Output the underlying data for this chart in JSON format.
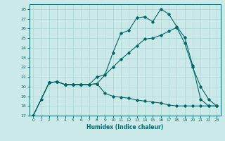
{
  "xlabel": "Humidex (Indice chaleur)",
  "bg_color": "#cce9e9",
  "grid_color": "#aad4d4",
  "line_color": "#006666",
  "xlim": [
    -0.5,
    23.5
  ],
  "ylim": [
    17,
    28.5
  ],
  "yticks": [
    17,
    18,
    19,
    20,
    21,
    22,
    23,
    24,
    25,
    26,
    27,
    28
  ],
  "xticks": [
    0,
    1,
    2,
    3,
    4,
    5,
    6,
    7,
    8,
    9,
    10,
    11,
    12,
    13,
    14,
    15,
    16,
    17,
    18,
    19,
    20,
    21,
    22,
    23
  ],
  "line1_x": [
    0,
    1,
    2,
    3,
    4,
    5,
    6,
    7,
    8,
    9,
    10,
    11,
    12,
    13,
    14,
    15,
    16,
    17,
    18,
    19,
    20,
    21,
    22,
    23
  ],
  "line1_y": [
    17.0,
    18.7,
    20.4,
    20.5,
    20.2,
    20.2,
    20.2,
    20.2,
    21.0,
    21.2,
    23.5,
    25.5,
    25.8,
    27.1,
    27.2,
    26.7,
    28.0,
    27.5,
    26.2,
    25.1,
    22.2,
    18.7,
    18.0,
    18.0
  ],
  "line2_x": [
    0,
    2,
    3,
    4,
    5,
    6,
    7,
    8,
    9,
    10,
    11,
    12,
    13,
    14,
    15,
    16,
    17,
    18,
    19,
    20,
    21,
    22,
    23
  ],
  "line2_y": [
    17.0,
    20.4,
    20.5,
    20.2,
    20.2,
    20.2,
    20.2,
    20.3,
    19.3,
    19.0,
    18.9,
    18.8,
    18.6,
    18.5,
    18.4,
    18.3,
    18.1,
    18.0,
    18.0,
    18.0,
    18.0,
    18.0,
    18.0
  ],
  "line3_x": [
    0,
    2,
    3,
    4,
    5,
    6,
    7,
    8,
    9,
    10,
    11,
    12,
    13,
    14,
    15,
    16,
    17,
    18,
    19,
    20,
    21,
    22,
    23
  ],
  "line3_y": [
    17.0,
    20.4,
    20.5,
    20.2,
    20.2,
    20.2,
    20.2,
    20.3,
    21.2,
    22.0,
    22.8,
    23.5,
    24.2,
    24.9,
    25.0,
    25.3,
    25.7,
    26.1,
    24.5,
    22.0,
    20.0,
    18.7,
    18.0
  ]
}
